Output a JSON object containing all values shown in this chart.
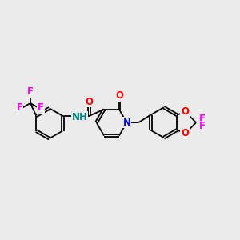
{
  "background_color": "#ebebeb",
  "bond_color": "#000000",
  "atom_colors": {
    "N": "#0000ff",
    "O": "#ff0000",
    "F": "#ff00ff",
    "NH": "#008080",
    "C": "#000000"
  },
  "font_size_atoms": 8.5,
  "fig_width": 3.0,
  "fig_height": 3.0,
  "xlim": [
    0,
    14
  ],
  "ylim": [
    0,
    10
  ]
}
